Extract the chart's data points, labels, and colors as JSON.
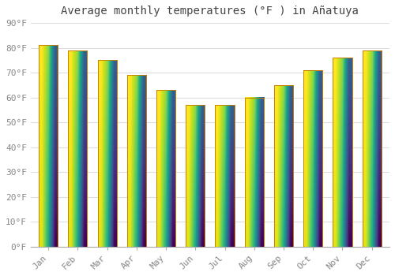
{
  "title": "Average monthly temperatures (°F ) in Añatuya",
  "months": [
    "Jan",
    "Feb",
    "Mar",
    "Apr",
    "May",
    "Jun",
    "Jul",
    "Aug",
    "Sep",
    "Oct",
    "Nov",
    "Dec"
  ],
  "values": [
    81,
    79,
    75,
    69,
    63,
    57,
    57,
    60,
    65,
    71,
    76,
    79
  ],
  "bar_color_bottom": "#F5A623",
  "bar_color_top": "#FFD966",
  "bar_edge_color": "#C88000",
  "ylim": [
    0,
    90
  ],
  "yticks": [
    0,
    10,
    20,
    30,
    40,
    50,
    60,
    70,
    80,
    90
  ],
  "ytick_labels": [
    "0°F",
    "10°F",
    "20°F",
    "30°F",
    "40°F",
    "50°F",
    "60°F",
    "70°F",
    "80°F",
    "90°F"
  ],
  "background_color": "#FFFFFF",
  "grid_color": "#DDDDDD",
  "title_fontsize": 10,
  "tick_fontsize": 8,
  "bar_width": 0.65
}
